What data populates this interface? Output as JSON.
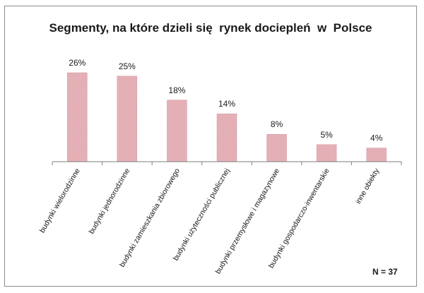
{
  "chart_data": {
    "type": "bar",
    "title": "Segmenty, na które dzieli się  rynek dociepleń  w  Polsce",
    "categories": [
      "budynki wielorodzinne",
      "budynki jednorodzinne",
      "budynki zamieszkania zbiorowego",
      "budynki użyteczności publicznej",
      "budynki przemysłowe i magazynowe",
      "budynki gospodarczo-inwentarskie",
      "inne obiekty"
    ],
    "values": [
      26,
      25,
      18,
      14,
      8,
      5,
      4
    ],
    "value_labels": [
      "26%",
      "25%",
      "18%",
      "14%",
      "8%",
      "5%",
      "4%"
    ],
    "xlabel": "",
    "ylabel": "",
    "ylim": [
      0,
      30
    ],
    "grid": false,
    "legend": "none",
    "note": "N = 37",
    "colors": {
      "bar_fill": "#e3aeb4",
      "bar_edge": "#cf9aa1",
      "axis": "#7f7f7f"
    }
  }
}
